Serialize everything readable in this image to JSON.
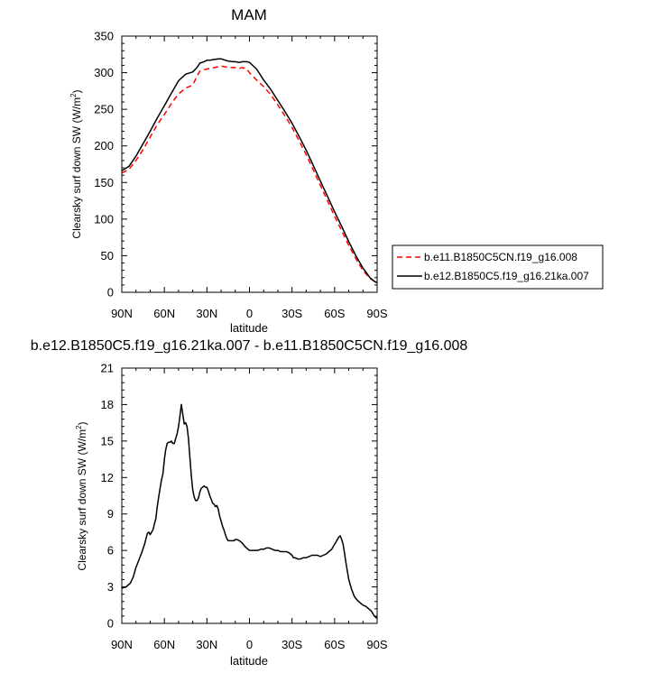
{
  "chart_data": [
    {
      "type": "line",
      "title": "MAM",
      "xlabel": "latitude",
      "ylabel": "Clearsky surf down SW (W/m²)",
      "ylabel_main": "Clearsky surf down SW (W/m",
      "ylabel_sup": "2",
      "ylabel_tail": ")",
      "xlim": [
        90,
        -90
      ],
      "ylim": [
        0,
        350
      ],
      "x_ticks": [
        90,
        60,
        30,
        0,
        -30,
        -60,
        -90
      ],
      "x_tick_labels": [
        "90N",
        "60N",
        "30N",
        "0",
        "30S",
        "60S",
        "90S"
      ],
      "y_ticks": [
        0,
        50,
        100,
        150,
        200,
        250,
        300,
        350
      ],
      "y_tick_labels": [
        "0",
        "50",
        "100",
        "150",
        "200",
        "250",
        "300",
        "350"
      ],
      "legend_position": "right",
      "series": [
        {
          "name": "b.e11.B1850C5CN.f19_g16.008",
          "color": "#ff0000",
          "dash": "dashed",
          "x": [
            90,
            85,
            80,
            75,
            70,
            65,
            60,
            55,
            50,
            45,
            40,
            37,
            35,
            32,
            30,
            28,
            25,
            22,
            20,
            17,
            15,
            12,
            10,
            7,
            5,
            2,
            0,
            -5,
            -10,
            -15,
            -20,
            -25,
            -30,
            -35,
            -40,
            -45,
            -50,
            -55,
            -60,
            -65,
            -70,
            -75,
            -80,
            -85,
            -88,
            -90
          ],
          "y": [
            163,
            168,
            180,
            195,
            212,
            229,
            243,
            258,
            271,
            279,
            283,
            295,
            302,
            304,
            305,
            306,
            307,
            308,
            309,
            308,
            307,
            307,
            307,
            306,
            307,
            305,
            300,
            290,
            281,
            270,
            256,
            241,
            225,
            207,
            188,
            167,
            146,
            125,
            104,
            84,
            64,
            46,
            30,
            19,
            15,
            13
          ]
        },
        {
          "name": "b.e12.B1850C5.f19_g16.21ka.007",
          "color": "#000000",
          "dash": "solid",
          "x": [
            90,
            85,
            80,
            75,
            70,
            65,
            60,
            55,
            50,
            45,
            40,
            37,
            35,
            32,
            30,
            28,
            25,
            22,
            20,
            17,
            15,
            12,
            10,
            7,
            5,
            2,
            0,
            -5,
            -10,
            -15,
            -20,
            -25,
            -30,
            -35,
            -40,
            -45,
            -50,
            -55,
            -60,
            -65,
            -70,
            -75,
            -80,
            -85,
            -88,
            -90
          ],
          "y": [
            166,
            172,
            186,
            203,
            220,
            238,
            255,
            272,
            289,
            298,
            301,
            307,
            313,
            315,
            317,
            317,
            318,
            319,
            319,
            317,
            316,
            315,
            315,
            314,
            315,
            315,
            314,
            305,
            290,
            277,
            262,
            247,
            231,
            213,
            194,
            173,
            152,
            131,
            110,
            90,
            69,
            50,
            33,
            20,
            15,
            13
          ]
        }
      ]
    },
    {
      "type": "line",
      "title": "b.e12.B1850C5.f19_g16.21ka.007 - b.e11.B1850C5CN.f19_g16.008",
      "xlabel": "latitude",
      "ylabel": "Clearsky surf down SW (W/m²)",
      "ylabel_main": "Clearsky surf down SW (W/m",
      "ylabel_sup": "2",
      "ylabel_tail": ")",
      "xlim": [
        90,
        -90
      ],
      "ylim": [
        0,
        21
      ],
      "x_ticks": [
        90,
        60,
        30,
        0,
        -30,
        -60,
        -90
      ],
      "x_tick_labels": [
        "90N",
        "60N",
        "30N",
        "0",
        "30S",
        "60S",
        "90S"
      ],
      "y_ticks": [
        0,
        3,
        6,
        9,
        12,
        15,
        18,
        21
      ],
      "y_tick_labels": [
        "0",
        "3",
        "6",
        "9",
        "12",
        "15",
        "18",
        "21"
      ],
      "series": [
        {
          "color": "#000000",
          "dash": "solid",
          "x": [
            90,
            87,
            84,
            82,
            80,
            78,
            76,
            74,
            72,
            71,
            70,
            68,
            67,
            66,
            65,
            64,
            63,
            62,
            61,
            60,
            59,
            58,
            57,
            56,
            55,
            54,
            53,
            52,
            51,
            50,
            49,
            48,
            47,
            46,
            45,
            44,
            43,
            42,
            41,
            40,
            39,
            38,
            37,
            36,
            35,
            34,
            33,
            32,
            31,
            30,
            29,
            28,
            27,
            26,
            25,
            24,
            23,
            22,
            21,
            20,
            19,
            18,
            17,
            16,
            15,
            14,
            13,
            12,
            11,
            10,
            9,
            7,
            5,
            3,
            1,
            0,
            -2,
            -4,
            -6,
            -8,
            -10,
            -12,
            -14,
            -16,
            -18,
            -20,
            -22,
            -24,
            -26,
            -28,
            -30,
            -31,
            -32,
            -34,
            -36,
            -38,
            -40,
            -42,
            -44,
            -46,
            -48,
            -50,
            -52,
            -54,
            -56,
            -58,
            -60,
            -61,
            -62,
            -63,
            -64,
            -65,
            -66,
            -67,
            -68,
            -69,
            -70,
            -72,
            -74,
            -76,
            -78,
            -80,
            -82,
            -84,
            -86,
            -88,
            -90
          ],
          "y": [
            2.9,
            3.0,
            3.3,
            3.8,
            4.6,
            5.2,
            5.8,
            6.5,
            7.4,
            7.5,
            7.3,
            7.7,
            8.2,
            8.6,
            9.6,
            10.4,
            11.1,
            11.8,
            12.3,
            13.5,
            14.3,
            14.8,
            14.9,
            14.9,
            15.0,
            14.8,
            14.8,
            15.2,
            15.6,
            16.2,
            17.1,
            18.0,
            17.2,
            16.4,
            16.5,
            16.2,
            15.2,
            13.6,
            12.2,
            11.0,
            10.4,
            10.1,
            10.1,
            10.3,
            10.8,
            11.1,
            11.2,
            11.3,
            11.2,
            11.2,
            10.9,
            10.5,
            10.2,
            9.9,
            9.8,
            9.6,
            9.7,
            9.4,
            8.8,
            8.4,
            8.0,
            7.7,
            7.3,
            7.0,
            6.8,
            6.8,
            6.8,
            6.8,
            6.8,
            6.9,
            6.9,
            6.8,
            6.6,
            6.3,
            6.1,
            6.0,
            6.0,
            6.0,
            6.0,
            6.1,
            6.1,
            6.2,
            6.2,
            6.1,
            6.0,
            6.0,
            5.9,
            5.9,
            5.9,
            5.8,
            5.6,
            5.4,
            5.4,
            5.3,
            5.3,
            5.4,
            5.4,
            5.5,
            5.6,
            5.6,
            5.6,
            5.5,
            5.6,
            5.7,
            5.9,
            6.1,
            6.5,
            6.7,
            6.9,
            7.1,
            7.2,
            6.9,
            6.5,
            5.8,
            5.0,
            4.3,
            3.6,
            2.8,
            2.2,
            1.9,
            1.7,
            1.5,
            1.4,
            1.2,
            1.0,
            0.6,
            0.4
          ]
        }
      ]
    }
  ]
}
